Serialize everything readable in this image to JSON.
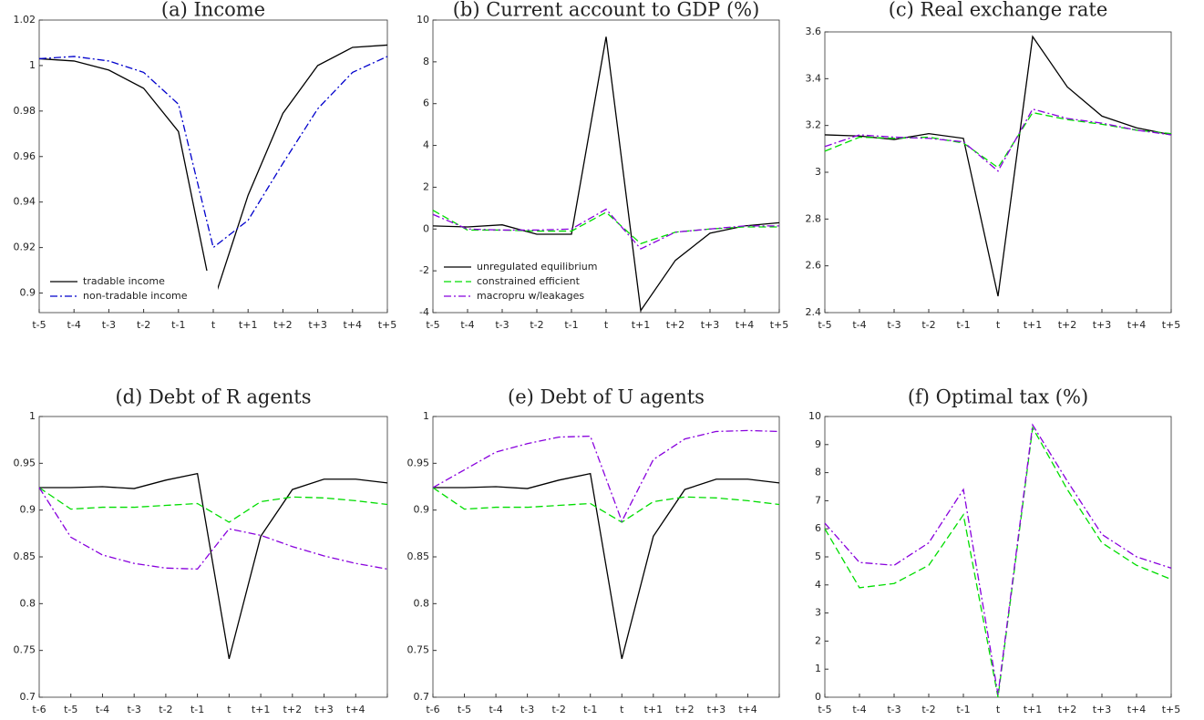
{
  "chart_data": [
    {
      "type": "line",
      "title": "(a) Income",
      "categories": [
        "t-5",
        "t-4",
        "t-3",
        "t-2",
        "t-1",
        "t",
        "t+1",
        "t+2",
        "t+3",
        "t+4",
        "t+5"
      ],
      "ylim": [
        0.8914,
        1.02
      ],
      "yticks": [
        0.9,
        0.92,
        0.94,
        0.96,
        0.98,
        1,
        1.02
      ],
      "legend": "lower left",
      "series": [
        {
          "name": "tradable income",
          "color": "#000000",
          "dash": "solid",
          "values": [
            1.003,
            1.002,
            0.998,
            0.99,
            0.971,
            0.896,
            0.943,
            0.979,
            1.0,
            1.008,
            1.009
          ]
        },
        {
          "name": "non-tradable income",
          "color": "#0000cc",
          "dash": "dashdot",
          "values": [
            1.003,
            1.004,
            1.002,
            0.997,
            0.983,
            0.92,
            0.932,
            0.957,
            0.981,
            0.997,
            1.004
          ]
        }
      ]
    },
    {
      "type": "line",
      "title": "(b) Current account to GDP (%)",
      "categories": [
        "t-5",
        "t-4",
        "t-3",
        "t-2",
        "t-1",
        "t",
        "t+1",
        "t+2",
        "t+3",
        "t+4",
        "t+5"
      ],
      "ylim": [
        -4,
        10
      ],
      "yticks": [
        -4,
        -2,
        0,
        2,
        4,
        6,
        8,
        10
      ],
      "legend": "lower left",
      "series": [
        {
          "name": "unregulated equilibrium",
          "color": "#000000",
          "dash": "solid",
          "values": [
            0.15,
            0.1,
            0.2,
            -0.25,
            -0.25,
            9.2,
            -3.9,
            -1.5,
            -0.2,
            0.15,
            0.3
          ]
        },
        {
          "name": "constrained efficient",
          "color": "#00dd00",
          "dash": "dashed",
          "values": [
            0.9,
            -0.05,
            -0.05,
            -0.1,
            -0.1,
            0.8,
            -0.7,
            -0.15,
            0.0,
            0.1,
            0.1
          ]
        },
        {
          "name": "macropru w/leakages",
          "color": "#8800dd",
          "dash": "dashdot",
          "values": [
            0.7,
            0.0,
            -0.05,
            -0.05,
            0.0,
            0.95,
            -0.95,
            -0.15,
            0.0,
            0.15,
            0.15
          ]
        }
      ]
    },
    {
      "type": "line",
      "title": "(c) Real exchange rate",
      "categories": [
        "t-5",
        "t-4",
        "t-3",
        "t-2",
        "t-1",
        "t",
        "t+1",
        "t+2",
        "t+3",
        "t+4",
        "t+5"
      ],
      "ylim": [
        2.4,
        3.6
      ],
      "yticks": [
        2.4,
        2.6,
        2.8,
        3,
        3.2,
        3.4,
        3.6
      ],
      "series": [
        {
          "color": "#000000",
          "dash": "solid",
          "values": [
            3.16,
            3.155,
            3.14,
            3.165,
            3.145,
            2.47,
            3.58,
            3.365,
            3.24,
            3.19,
            3.16
          ]
        },
        {
          "color": "#00dd00",
          "dash": "dashed",
          "values": [
            3.09,
            3.15,
            3.145,
            3.15,
            3.125,
            3.02,
            3.255,
            3.225,
            3.205,
            3.18,
            3.165
          ]
        },
        {
          "color": "#8800dd",
          "dash": "dashdot",
          "values": [
            3.11,
            3.16,
            3.15,
            3.145,
            3.13,
            3.005,
            3.27,
            3.23,
            3.21,
            3.18,
            3.16
          ]
        }
      ]
    },
    {
      "type": "line",
      "title": "(d) Debt of R agents",
      "categories": [
        "t-6",
        "t-5",
        "t-4",
        "t-3",
        "t-2",
        "t-1",
        "t",
        "t+1",
        "t+2",
        "t+3",
        "t+4",
        null
      ],
      "ylim": [
        0.7,
        1
      ],
      "yticks": [
        0.7,
        0.75,
        0.8,
        0.85,
        0.9,
        0.95,
        1
      ],
      "series": [
        {
          "color": "#000000",
          "dash": "solid",
          "values": [
            0.924,
            0.924,
            0.925,
            0.923,
            0.932,
            0.939,
            0.741,
            0.872,
            0.922,
            0.933,
            0.933,
            0.929
          ]
        },
        {
          "color": "#00dd00",
          "dash": "dashed",
          "values": [
            0.924,
            0.901,
            0.903,
            0.903,
            0.905,
            0.907,
            0.887,
            0.909,
            0.914,
            0.913,
            0.91,
            0.906
          ]
        },
        {
          "color": "#8800dd",
          "dash": "dashdot",
          "values": [
            0.924,
            0.871,
            0.852,
            0.843,
            0.838,
            0.837,
            0.88,
            0.873,
            0.861,
            0.851,
            0.843,
            0.837
          ]
        }
      ]
    },
    {
      "type": "line",
      "title": "(e) Debt of U agents",
      "categories": [
        "t-6",
        "t-5",
        "t-4",
        "t-3",
        "t-2",
        "t-1",
        "t",
        "t+1",
        "t+2",
        "t+3",
        "t+4",
        null
      ],
      "ylim": [
        0.7,
        1
      ],
      "yticks": [
        0.7,
        0.75,
        0.8,
        0.85,
        0.9,
        0.95,
        1
      ],
      "series": [
        {
          "color": "#000000",
          "dash": "solid",
          "values": [
            0.924,
            0.924,
            0.925,
            0.923,
            0.932,
            0.939,
            0.741,
            0.872,
            0.922,
            0.933,
            0.933,
            0.929
          ]
        },
        {
          "color": "#00dd00",
          "dash": "dashed",
          "values": [
            0.924,
            0.901,
            0.903,
            0.903,
            0.905,
            0.907,
            0.887,
            0.909,
            0.914,
            0.913,
            0.91,
            0.906
          ]
        },
        {
          "color": "#8800dd",
          "dash": "dashdot",
          "values": [
            0.924,
            0.943,
            0.962,
            0.971,
            0.978,
            0.979,
            0.888,
            0.954,
            0.976,
            0.984,
            0.985,
            0.984
          ]
        }
      ]
    },
    {
      "type": "line",
      "title": "(f) Optimal tax (%)",
      "categories": [
        "t-5",
        "t-4",
        "t-3",
        "t-2",
        "t-1",
        "t",
        "t+1",
        "t+2",
        "t+3",
        "t+4",
        "t+5"
      ],
      "ylim": [
        0,
        10
      ],
      "yticks": [
        0,
        1,
        2,
        3,
        4,
        5,
        6,
        7,
        8,
        9,
        10
      ],
      "series": [
        {
          "color": "#00dd00",
          "dash": "dashed",
          "values": [
            6.0,
            3.9,
            4.05,
            4.7,
            6.5,
            0,
            9.6,
            7.4,
            5.5,
            4.7,
            4.2
          ]
        },
        {
          "color": "#8800dd",
          "dash": "dashdot",
          "values": [
            6.2,
            4.8,
            4.7,
            5.5,
            7.4,
            0.1,
            9.7,
            7.7,
            5.8,
            5.0,
            4.6
          ]
        }
      ]
    }
  ]
}
